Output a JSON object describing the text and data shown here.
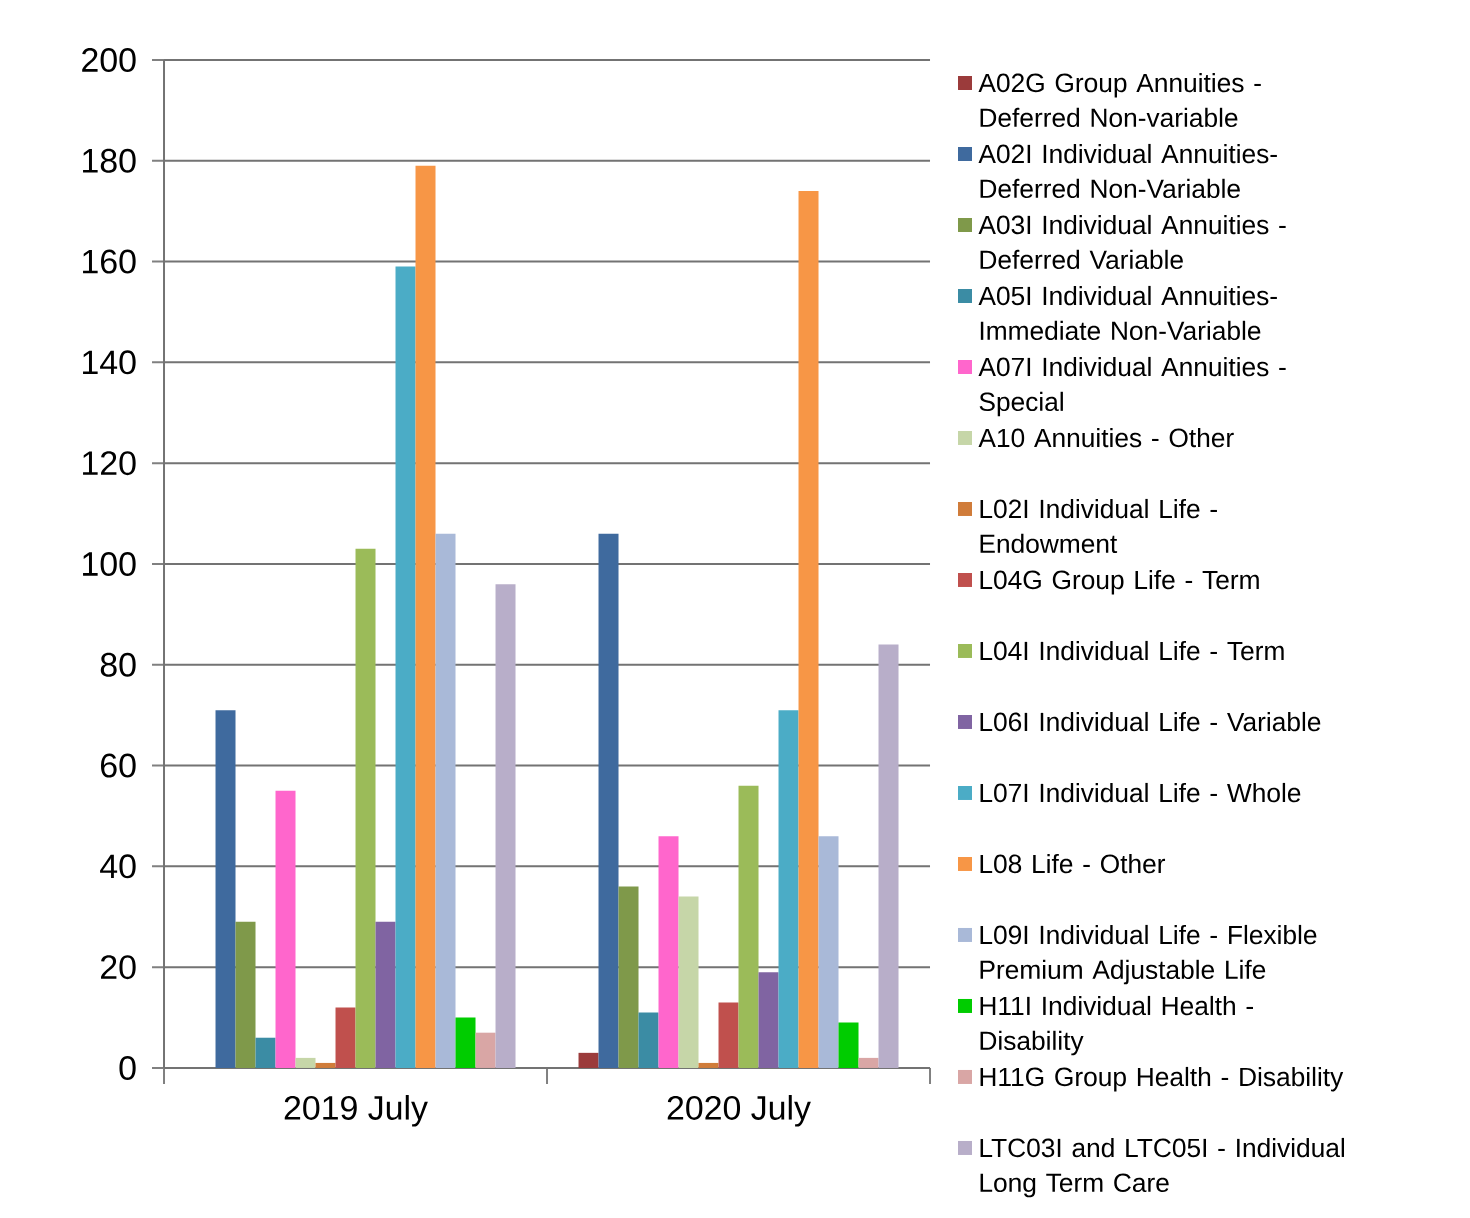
{
  "chart_data": {
    "type": "bar",
    "categories": [
      "2019 July",
      "2020 July"
    ],
    "ylim": [
      0,
      200
    ],
    "yticks": [
      0,
      20,
      40,
      60,
      80,
      100,
      120,
      140,
      160,
      180,
      200
    ],
    "grid": "y",
    "legend": "right",
    "series": [
      {
        "name": "A02G Group Annuities - Deferred Non-variable",
        "color": "#9b3b3b",
        "values": [
          0,
          3
        ]
      },
      {
        "name": "A02I Individual Annuities- Deferred Non-Variable",
        "color": "#3f6a9e",
        "values": [
          71,
          106
        ]
      },
      {
        "name": "A03I Individual Annuities - Deferred Variable",
        "color": "#7f994a",
        "values": [
          29,
          36
        ]
      },
      {
        "name": "A05I Individual Annuities- Immediate Non-Variable",
        "color": "#3b8ca4",
        "values": [
          6,
          11
        ]
      },
      {
        "name": "A07I Individual Annuities - Special",
        "color": "#ff66cc",
        "values": [
          55,
          46
        ]
      },
      {
        "name": "A10 Annuities - Other",
        "color": "#c6d6a8",
        "values": [
          2,
          34
        ]
      },
      {
        "name": "L02I Individual Life - Endowment",
        "color": "#d07c3a",
        "values": [
          1,
          1
        ]
      },
      {
        "name": "L04G Group Life - Term",
        "color": "#c0504d",
        "values": [
          12,
          13
        ]
      },
      {
        "name": "L04I Individual Life - Term",
        "color": "#9bbb59",
        "values": [
          103,
          56
        ]
      },
      {
        "name": "L06I Individual Life - Variable",
        "color": "#8064a2",
        "values": [
          29,
          19
        ]
      },
      {
        "name": "L07I Individual Life - Whole",
        "color": "#4bacc6",
        "values": [
          159,
          71
        ]
      },
      {
        "name": "L08 Life - Other",
        "color": "#f79646",
        "values": [
          179,
          174
        ]
      },
      {
        "name": "L09I Individual Life - Flexible Premium Adjustable Life",
        "color": "#a9b9d8",
        "values": [
          106,
          46
        ]
      },
      {
        "name": "H11I Individual Health - Disability",
        "color": "#00cc00",
        "values": [
          10,
          9
        ]
      },
      {
        "name": "H11G Group Health - Disability",
        "color": "#d9a6a5",
        "values": [
          7,
          2
        ]
      },
      {
        "name": "LTC03I and LTC05I - Individual Long Term Care",
        "color": "#b8aec9",
        "values": [
          96,
          84
        ]
      }
    ]
  }
}
